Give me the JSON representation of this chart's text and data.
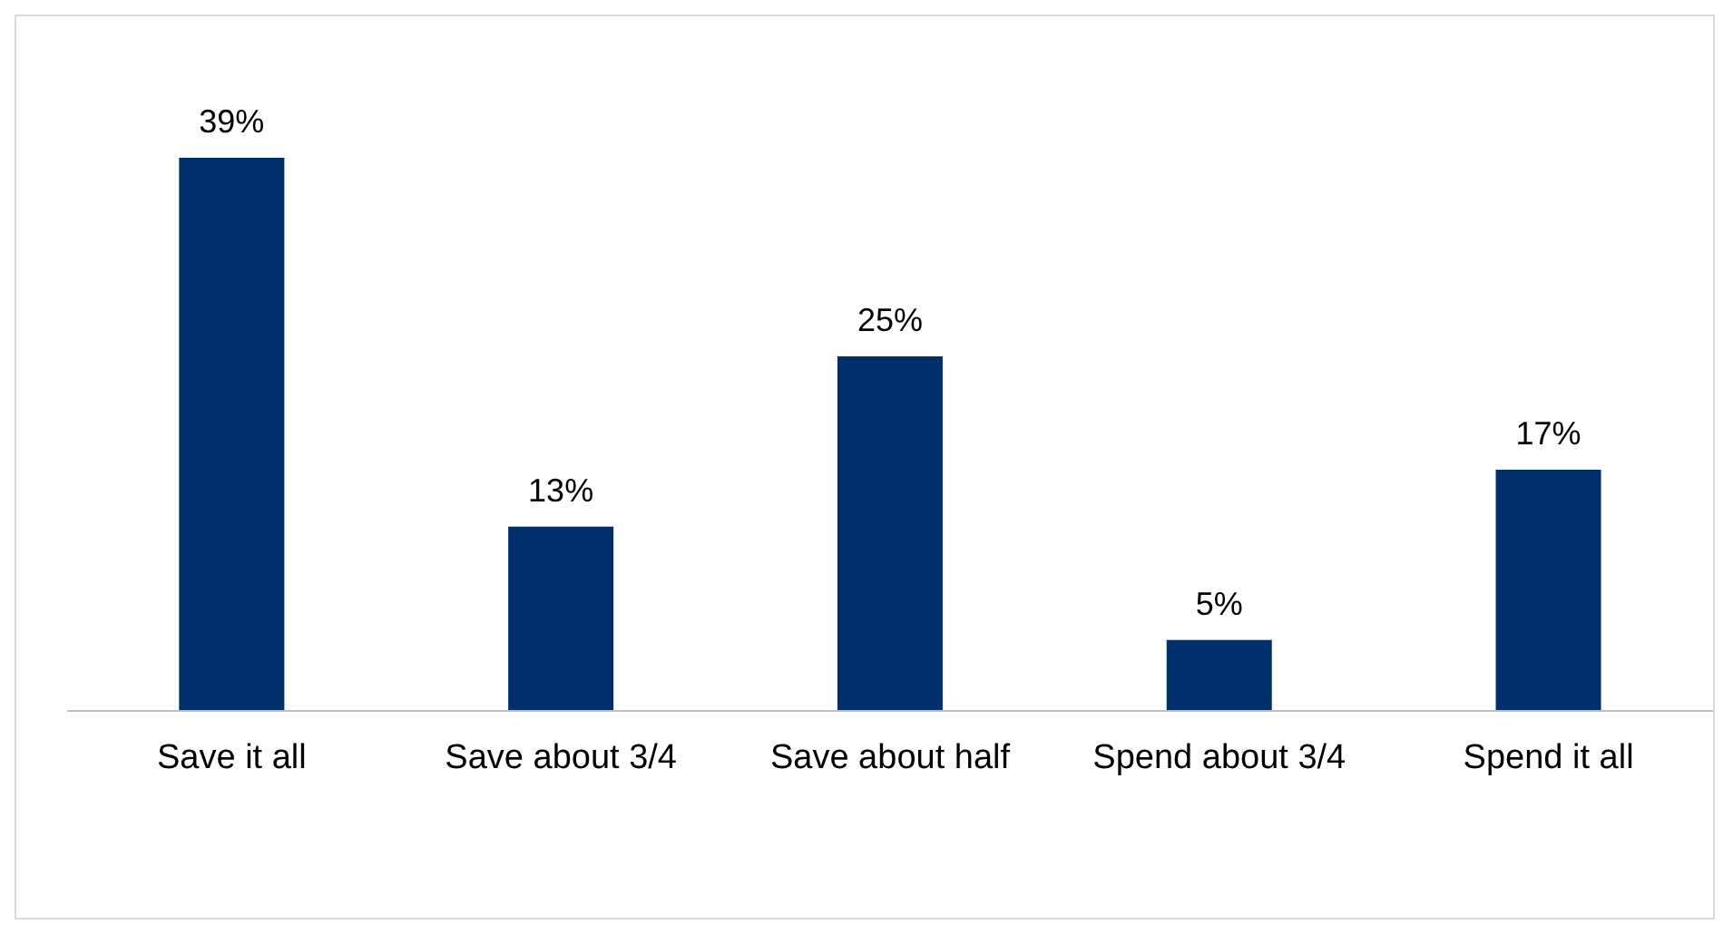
{
  "chart_data": {
    "type": "bar",
    "categories": [
      "Save it all",
      "Save about 3/4",
      "Save about half",
      "Spend about 3/4",
      "Spend it all"
    ],
    "values": [
      39,
      13,
      25,
      5,
      17
    ],
    "value_labels": [
      "39%",
      "13%",
      "25%",
      "5%",
      "17%"
    ],
    "color": "#002f6c",
    "grid": false,
    "legend": false
  }
}
